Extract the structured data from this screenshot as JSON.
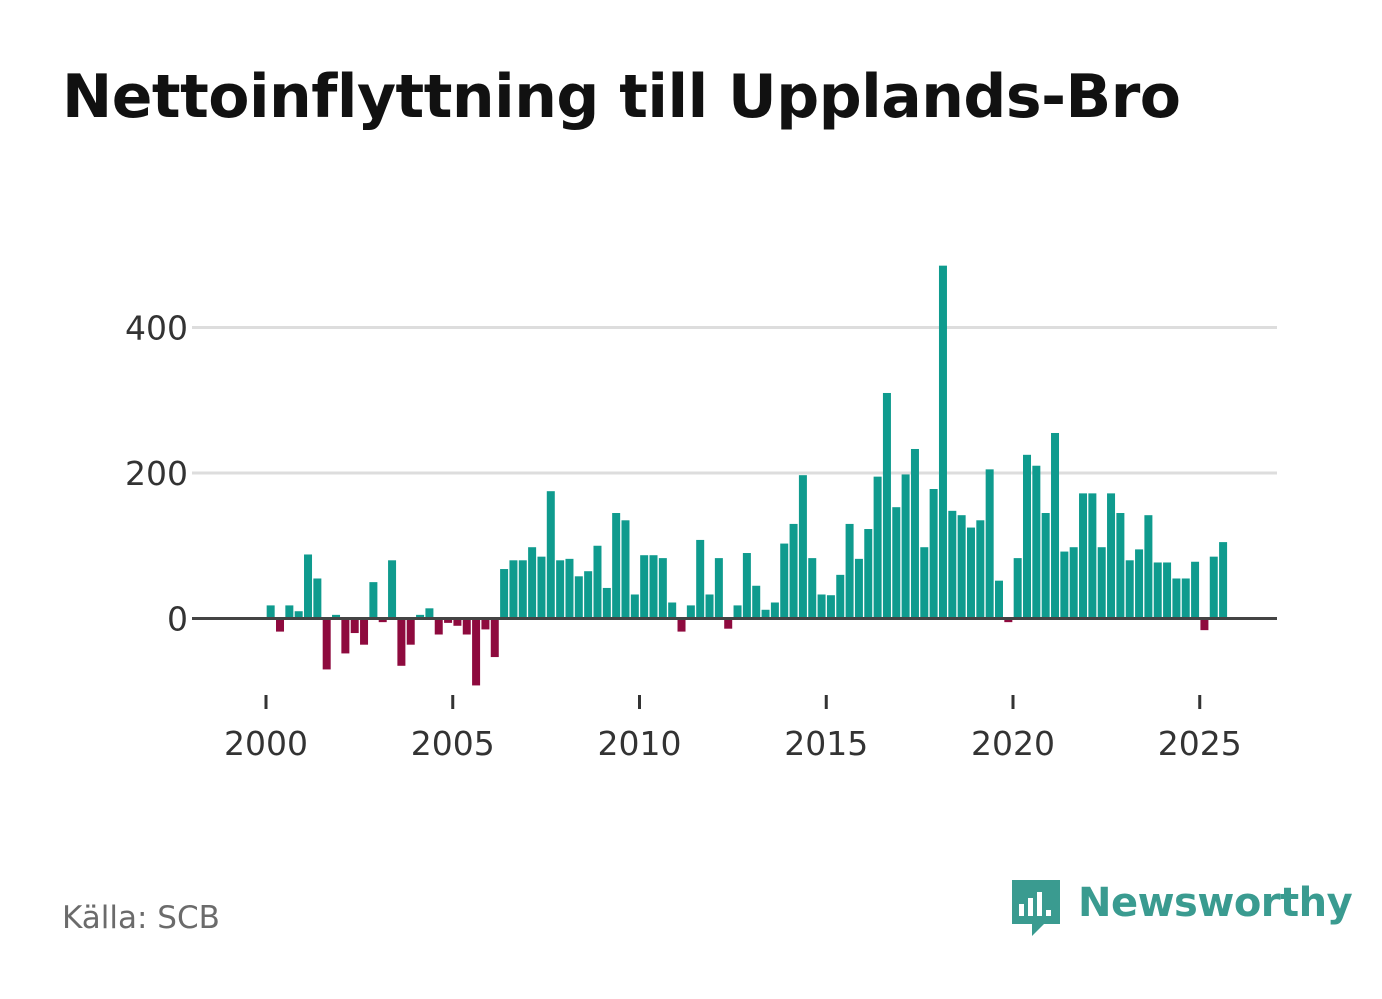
{
  "title": "Nettoinflyttning till Upplands-Bro",
  "source": "Källa: SCB",
  "brand": {
    "name": "Newsworthy",
    "icon": "newsworthy-logo-icon",
    "color": "#3a9b90"
  },
  "colors": {
    "positive": "#0f9b8e",
    "negative": "#8e0a3e",
    "grid": "#dddddd",
    "zero_line": "#444444"
  },
  "chart_data": {
    "type": "bar",
    "title": "Nettoinflyttning till Upplands-Bro",
    "xlabel": "",
    "ylabel": "",
    "frequency": "quarterly",
    "start_year": 2000,
    "ylim": [
      -100,
      490
    ],
    "yticks": [
      0,
      200,
      400
    ],
    "xtick_labels": [
      "2000",
      "2005",
      "2010",
      "2015",
      "2020",
      "2025"
    ],
    "xtick_years": [
      2000,
      2005,
      2010,
      2015,
      2020,
      2025
    ],
    "values": [
      18,
      -18,
      18,
      10,
      88,
      55,
      -70,
      5,
      -48,
      -20,
      -36,
      50,
      -5,
      80,
      -65,
      -36,
      5,
      14,
      -22,
      -6,
      -10,
      -22,
      -92,
      -15,
      -53,
      68,
      80,
      80,
      98,
      85,
      175,
      80,
      82,
      58,
      65,
      100,
      42,
      145,
      135,
      33,
      87,
      87,
      83,
      22,
      -18,
      18,
      108,
      33,
      83,
      -14,
      18,
      90,
      45,
      12,
      22,
      103,
      130,
      197,
      83,
      33,
      32,
      60,
      130,
      82,
      123,
      195,
      310,
      153,
      198,
      233,
      98,
      178,
      485,
      148,
      142,
      125,
      135,
      205,
      52,
      -5,
      83,
      225,
      210,
      145,
      255,
      92,
      98,
      172,
      172,
      98,
      172,
      145,
      80,
      95,
      142,
      77,
      77,
      55,
      55,
      78,
      -16,
      85,
      105
    ]
  }
}
